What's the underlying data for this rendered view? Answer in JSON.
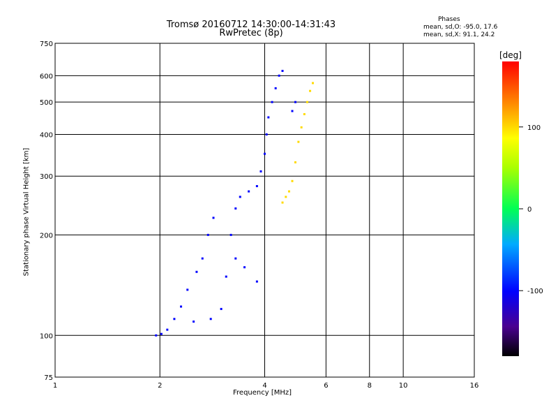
{
  "chart_data": {
    "type": "scatter",
    "title": "Tromsø 20160712 14:30:00-14:31:43",
    "subtitle": "RwPretec (8p)",
    "xlabel": "Frequency [MHz]",
    "ylabel": "Stationary phase Virtual Height [km]",
    "xscale": "log",
    "yscale": "log",
    "xlim": [
      1,
      16
    ],
    "ylim": [
      75,
      750
    ],
    "xticks": [
      1,
      2,
      4,
      6,
      8,
      10,
      16
    ],
    "xtick_labels": [
      "1",
      "2",
      "4",
      "6",
      "8",
      "10",
      "16"
    ],
    "yticks": [
      75,
      100,
      200,
      300,
      400,
      500,
      600,
      750
    ],
    "ytick_labels": [
      "75",
      "100",
      "200",
      "300",
      "400",
      "500",
      "600",
      "750"
    ],
    "grid": true,
    "phases": {
      "title": "Phases",
      "o_stats": "mean, sd,O: -95.0, 17.6",
      "x_stats": "mean, sd,X:  91.1, 24.2"
    },
    "colorbar": {
      "label": "[deg]",
      "ticks": [
        100,
        0,
        -100
      ],
      "tick_labels": [
        "100",
        "0",
        "-100"
      ],
      "range": [
        -180,
        180
      ],
      "placement": "right"
    },
    "series": [
      {
        "points": [
          [
            1.95,
            100
          ],
          [
            2.02,
            101
          ],
          [
            2.1,
            104
          ],
          [
            2.2,
            112
          ],
          [
            2.3,
            122
          ],
          [
            2.4,
            137
          ],
          [
            2.55,
            155
          ],
          [
            2.65,
            170
          ],
          [
            2.75,
            200
          ],
          [
            2.85,
            225
          ],
          [
            2.5,
            110
          ],
          [
            2.8,
            112
          ],
          [
            3.0,
            120
          ],
          [
            3.1,
            150
          ],
          [
            3.2,
            200
          ],
          [
            3.3,
            240
          ],
          [
            3.4,
            260
          ],
          [
            3.6,
            270
          ],
          [
            3.8,
            280
          ],
          [
            3.9,
            310
          ],
          [
            4.0,
            350
          ],
          [
            4.05,
            400
          ],
          [
            4.1,
            450
          ],
          [
            4.2,
            500
          ],
          [
            4.3,
            550
          ],
          [
            4.4,
            600
          ],
          [
            4.5,
            620
          ],
          [
            3.3,
            170
          ],
          [
            3.5,
            160
          ],
          [
            3.8,
            145
          ],
          [
            4.8,
            470
          ],
          [
            4.9,
            500
          ]
        ],
        "phase_deg": -100
      },
      {
        "points": [
          [
            4.5,
            250
          ],
          [
            4.6,
            260
          ],
          [
            4.7,
            270
          ],
          [
            4.8,
            290
          ],
          [
            4.9,
            330
          ],
          [
            5.0,
            380
          ],
          [
            5.1,
            420
          ],
          [
            5.2,
            460
          ],
          [
            5.3,
            500
          ],
          [
            5.4,
            540
          ],
          [
            5.5,
            570
          ]
        ],
        "phase_deg": 100
      }
    ]
  }
}
